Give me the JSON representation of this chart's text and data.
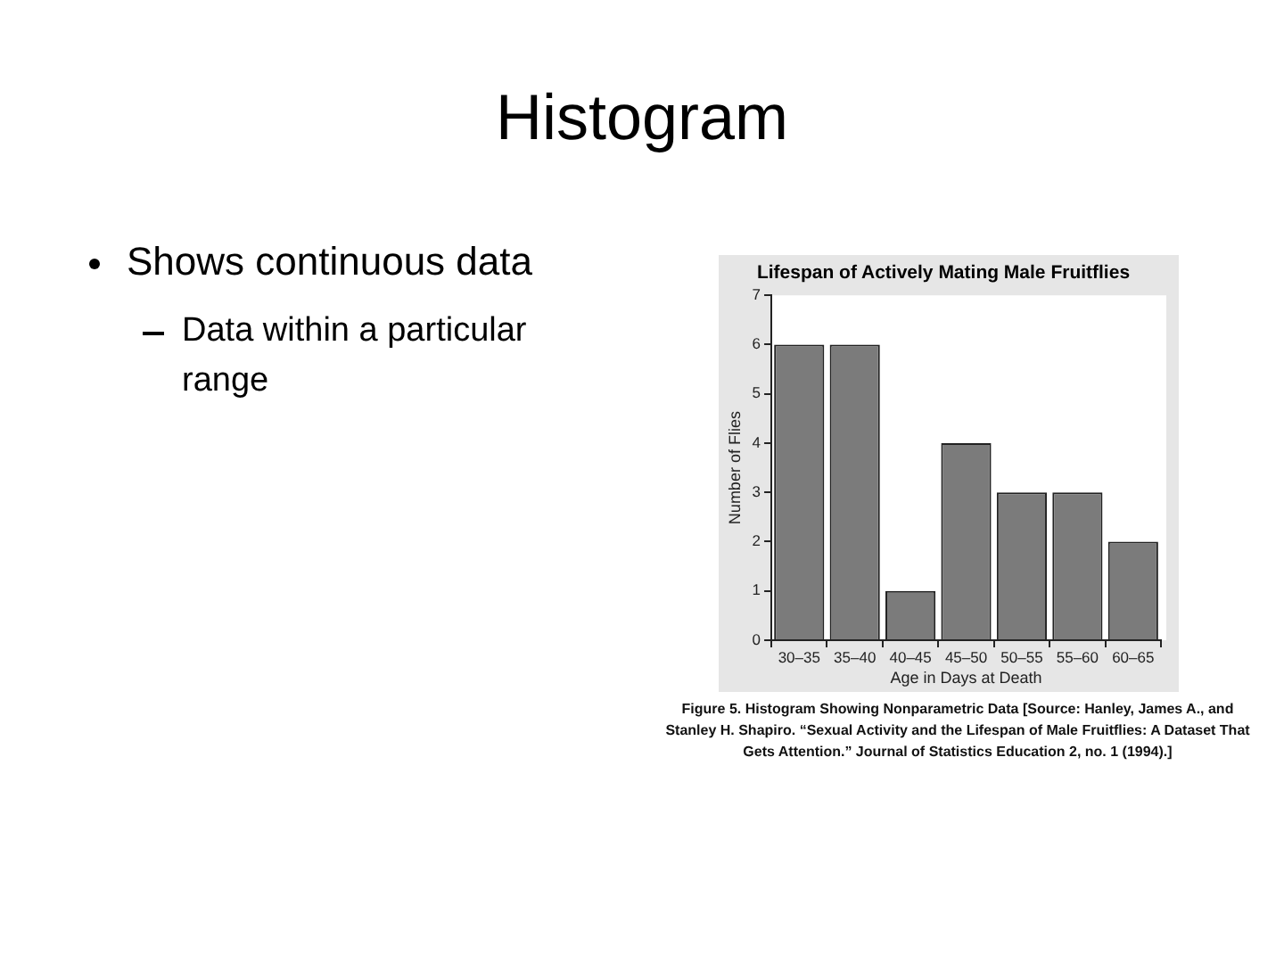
{
  "chart_data": {
    "type": "bar",
    "title": "Lifespan of Actively Mating Male Fruitflies",
    "xlabel": "Age in Days at Death",
    "ylabel": "Number of Flies",
    "categories": [
      "30–35",
      "35–40",
      "40–45",
      "45–50",
      "50–55",
      "55–60",
      "60–65"
    ],
    "values": [
      6,
      6,
      1,
      4,
      3,
      3,
      2
    ],
    "color": "#7b7b7b",
    "ylim": [
      0,
      7
    ],
    "yticks": [
      0,
      1,
      2,
      3,
      4,
      5,
      6,
      7
    ],
    "annotations": [
      "Histogram",
      "Shows continuous data",
      "Data within a particular range",
      "Figure 5. Histogram Showing Nonparametric Data [Source: Hanley, James A., and Stanley H. Shapiro. “Sexual Activity and the Lifespan of Male Fruitflies: A Dataset That Gets Attention.” Journal of Statistics Education 2, no. 1 (1994).]"
    ]
  }
}
